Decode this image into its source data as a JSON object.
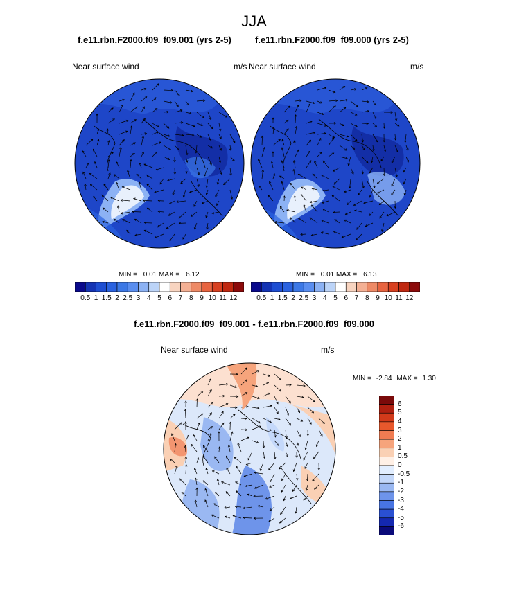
{
  "page": {
    "title": "JJA"
  },
  "panels": [
    {
      "case_title": "f.e11.rbn.F2000.f09_f09.001 (yrs 2-5)",
      "variable": "Near surface wind",
      "units": "m/s",
      "min_label": "MIN =",
      "min_value": "0.01",
      "max_label": "MAX =",
      "max_value": "6.12"
    },
    {
      "case_title": "f.e11.rbn.F2000.f09_f09.000 (yrs 2-5)",
      "variable": "Near surface wind",
      "units": "m/s",
      "min_label": "MIN =",
      "min_value": "0.01",
      "max_label": "MAX =",
      "max_value": "6.13"
    }
  ],
  "colorbar_speed": {
    "labels": [
      "0.5",
      "1",
      "1.5",
      "2",
      "2.5",
      "3",
      "4",
      "5",
      "6",
      "7",
      "8",
      "9",
      "10",
      "11",
      "12"
    ],
    "colors": [
      "#0a0a8c",
      "#1434b4",
      "#1e4ed2",
      "#2a62e0",
      "#3c78e6",
      "#5a8ef0",
      "#8cb2f4",
      "#bcd4f8",
      "#ffffff",
      "#f8d4c0",
      "#f4b094",
      "#ee8a66",
      "#e86440",
      "#d84020",
      "#c02810",
      "#8c0a0a"
    ]
  },
  "difference": {
    "title": "f.e11.rbn.F2000.f09_f09.001 - f.e11.rbn.F2000.f09_f09.000",
    "variable": "Near surface wind",
    "units": "m/s",
    "min_label": "MIN =",
    "min_value": "-2.84",
    "max_label": "MAX =",
    "max_value": "1.30",
    "colorbar": {
      "labels": [
        "6",
        "5",
        "4",
        "3",
        "2",
        "1",
        "0.5",
        "0",
        "-0.5",
        "-1",
        "-2",
        "-3",
        "-4",
        "-5",
        "-6"
      ],
      "colors": [
        "#7a0a0a",
        "#b02010",
        "#d23a1a",
        "#e8582c",
        "#f07c52",
        "#f6a47c",
        "#fad0b4",
        "#fff0e6",
        "#e2eeff",
        "#c4d8fa",
        "#9ab8f2",
        "#6e94ea",
        "#4874e2",
        "#2a50d2",
        "#1428b0",
        "#0a0a7a"
      ]
    }
  },
  "colors": {
    "speed_background": "#1e46c8",
    "diff_background": "#dce8fa"
  }
}
